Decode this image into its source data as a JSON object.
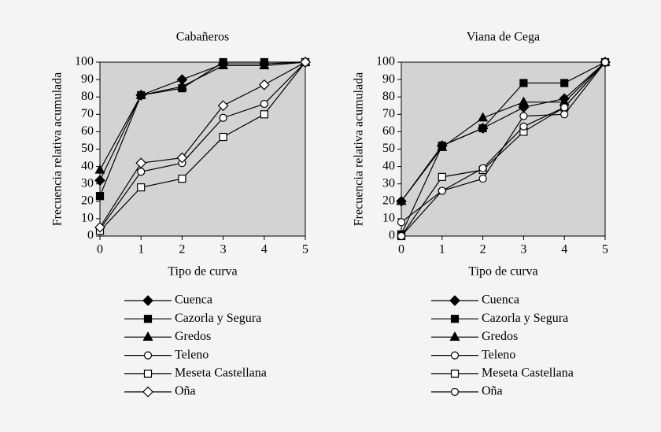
{
  "chart_data": [
    {
      "type": "line",
      "title": "Cabañeros",
      "x_label": "Tipo de curva",
      "y_label": "Frecuencia relativa acumulada",
      "x": [
        0,
        1,
        2,
        3,
        4,
        5
      ],
      "xlim": [
        0,
        5
      ],
      "xticks": [
        0,
        1,
        2,
        3,
        4,
        5
      ],
      "ylim": [
        0,
        100
      ],
      "yticks": [
        0,
        10,
        20,
        30,
        40,
        50,
        60,
        70,
        80,
        90,
        100
      ],
      "series": [
        {
          "name": "Cuenca",
          "color": "#000000",
          "marker": "diamond",
          "filled": true,
          "values": [
            32,
            81,
            90,
            99,
            99,
            100
          ]
        },
        {
          "name": "Cazorla y Segura",
          "color": "#000000",
          "marker": "square",
          "filled": true,
          "values": [
            23,
            81,
            85,
            100,
            100,
            100
          ]
        },
        {
          "name": "Gredos",
          "color": "#000000",
          "marker": "triangle",
          "filled": true,
          "values": [
            38,
            81,
            86,
            98,
            98,
            100
          ]
        },
        {
          "name": "Teleno",
          "color": "#000000",
          "marker": "circle",
          "filled": false,
          "values": [
            4,
            37,
            42,
            68,
            76,
            100
          ]
        },
        {
          "name": "Meseta Castellana",
          "color": "#000000",
          "marker": "square",
          "filled": false,
          "values": [
            3,
            28,
            33,
            57,
            70,
            100
          ]
        },
        {
          "name": "Oña",
          "color": "#000000",
          "marker": "diamond",
          "filled": false,
          "values": [
            5,
            42,
            45,
            75,
            87,
            100
          ]
        }
      ]
    },
    {
      "type": "line",
      "title": "Viana de Cega",
      "x_label": "Tipo de curva",
      "y_label": "Frecuencia relativa acumulada",
      "x": [
        0,
        1,
        2,
        3,
        4,
        5
      ],
      "xlim": [
        0,
        5
      ],
      "xticks": [
        0,
        1,
        2,
        3,
        4,
        5
      ],
      "ylim": [
        0,
        100
      ],
      "yticks": [
        0,
        10,
        20,
        30,
        40,
        50,
        60,
        70,
        80,
        90,
        100
      ],
      "series": [
        {
          "name": "Cuenca",
          "color": "#000000",
          "marker": "diamond",
          "filled": true,
          "values": [
            20,
            52,
            62,
            74,
            79,
            100
          ]
        },
        {
          "name": "Cazorla y Segura",
          "color": "#000000",
          "marker": "square",
          "filled": true,
          "values": [
            1,
            52,
            62,
            88,
            88,
            100
          ]
        },
        {
          "name": "Gredos",
          "color": "#000000",
          "marker": "triangle",
          "filled": true,
          "values": [
            20,
            51,
            68,
            77,
            77,
            100
          ]
        },
        {
          "name": "Teleno",
          "color": "#000000",
          "marker": "circle",
          "filled": false,
          "values": [
            8,
            26,
            33,
            69,
            70,
            100
          ]
        },
        {
          "name": "Meseta Castellana",
          "color": "#000000",
          "marker": "square",
          "filled": false,
          "values": [
            0,
            34,
            38,
            60,
            74,
            100
          ]
        },
        {
          "name": "Oña",
          "color": "#000000",
          "marker": "circle",
          "filled": false,
          "values": [
            0,
            26,
            39,
            63,
            74,
            100
          ]
        }
      ]
    }
  ]
}
